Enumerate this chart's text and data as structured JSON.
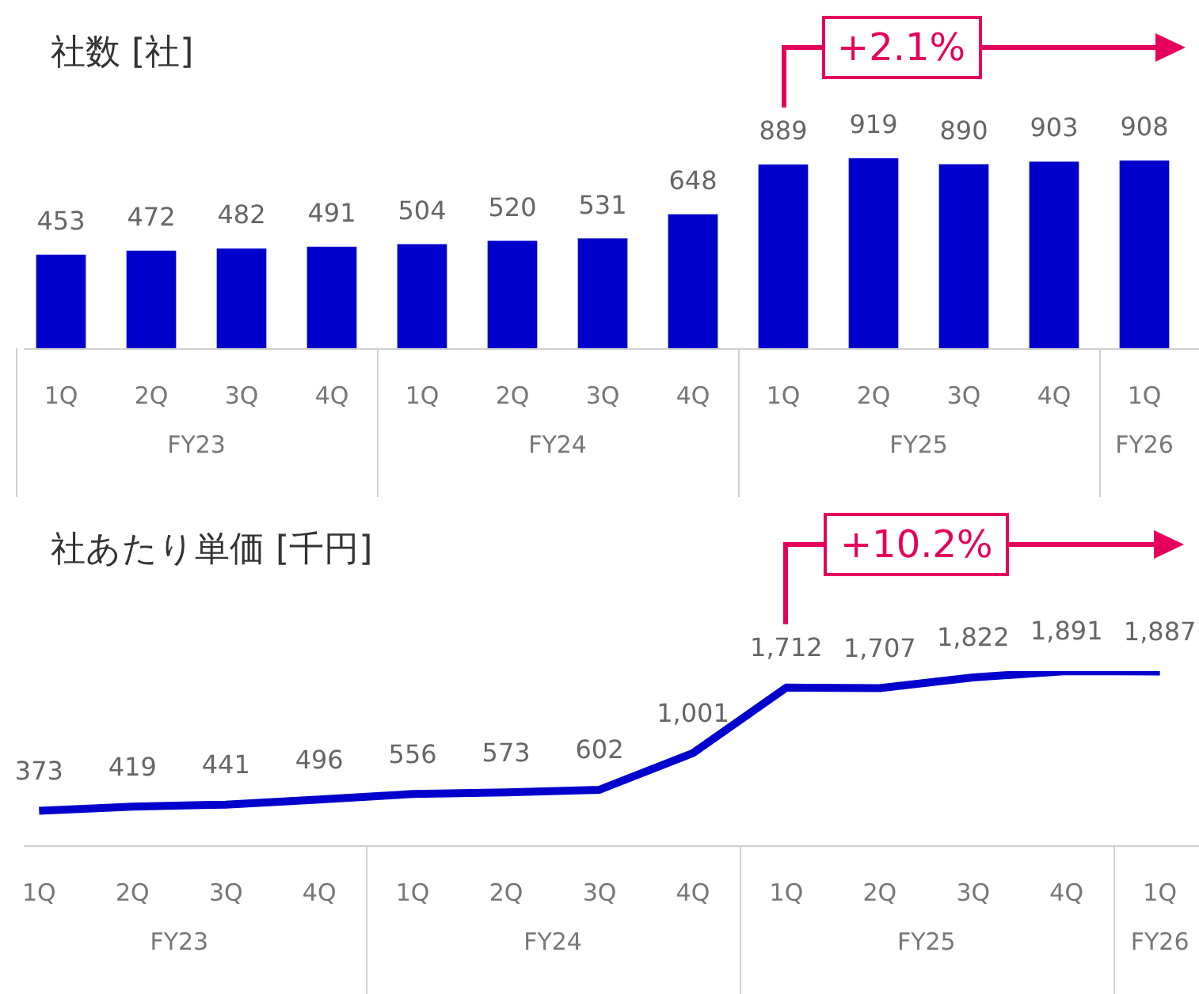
{
  "chart_data": [
    {
      "type": "bar",
      "title": "社数 [社]",
      "categories": [
        "1Q",
        "2Q",
        "3Q",
        "4Q",
        "1Q",
        "2Q",
        "3Q",
        "4Q",
        "1Q",
        "2Q",
        "3Q",
        "4Q",
        "1Q"
      ],
      "values": [
        453,
        472,
        482,
        491,
        504,
        520,
        531,
        648,
        889,
        919,
        890,
        903,
        908
      ],
      "color": "#0000cc",
      "data_labels": true,
      "grid": false,
      "legend": false,
      "annotations": [
        "FY23",
        "FY24",
        "FY25",
        "FY26",
        "+2.1%"
      ]
    },
    {
      "type": "line",
      "title": "社あたり単価 [千円]",
      "categories": [
        "1Q",
        "2Q",
        "3Q",
        "4Q",
        "1Q",
        "2Q",
        "3Q",
        "4Q",
        "1Q",
        "2Q",
        "3Q",
        "4Q",
        "1Q"
      ],
      "values": [
        373,
        419,
        441,
        496,
        556,
        573,
        602,
        1001,
        1712,
        1707,
        1822,
        1891,
        1887
      ],
      "value_labels": [
        "373",
        "419",
        "441",
        "496",
        "556",
        "573",
        "602",
        "1,001",
        "1,712",
        "1,707",
        "1,822",
        "1,891",
        "1,887"
      ],
      "color": "#0000cc",
      "marker": "none",
      "grid": false,
      "legend": false,
      "annotations": [
        "FY23",
        "FY24",
        "FY25",
        "FY26",
        "+10.2%"
      ]
    }
  ]
}
